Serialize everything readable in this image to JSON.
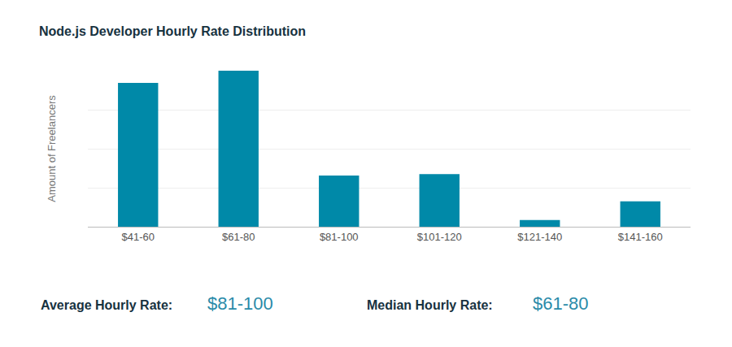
{
  "chart_data": {
    "type": "bar",
    "title": "Node.js Developer Hourly Rate Distribution",
    "y_label": "Amount of Freelancers",
    "categories": [
      "$41-60",
      "$61-80",
      "$81-100",
      "$101-120",
      "$121-140",
      "$141-160"
    ],
    "values": [
      3.69,
      4.0,
      1.31,
      1.35,
      0.17,
      0.65
    ],
    "color": "#0089a8",
    "ylim": [
      0,
      4
    ],
    "yticks": [
      0,
      1,
      2,
      3,
      4
    ],
    "grid": true,
    "tick_labels": "x",
    "annotations": [
      {
        "label": "Average Hourly Rate:",
        "value": "$81-100"
      },
      {
        "label": "Median Hourly Rate:",
        "value": "$61-80"
      }
    ]
  }
}
